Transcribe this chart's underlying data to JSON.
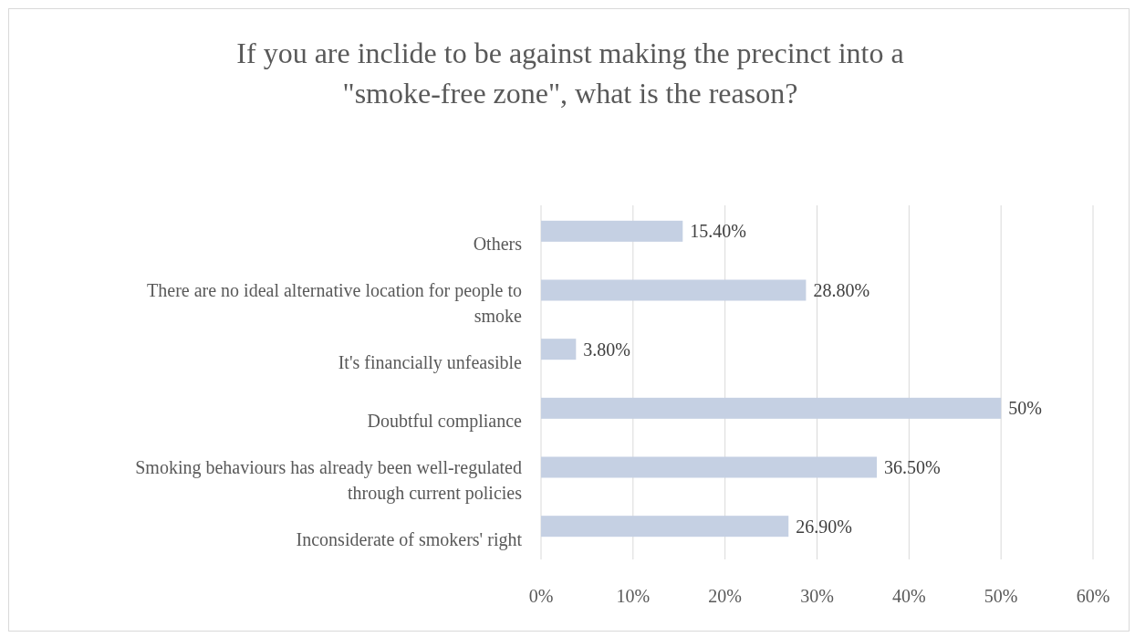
{
  "chart_data": {
    "type": "bar",
    "orientation": "horizontal",
    "title": "If you are inclide to be against making the precinct into a \"smoke-free zone\", what is the reason?",
    "categories": [
      "Others",
      "There are no ideal alternative location for  people to smoke",
      "It's financially unfeasible",
      "Doubtful compliance",
      "Smoking behaviours has already been well-regulated through current policies",
      "Inconsiderate of smokers' right"
    ],
    "values": [
      15.4,
      28.8,
      3.8,
      50,
      36.5,
      26.9
    ],
    "value_labels": [
      "15.40%",
      "28.80%",
      "3.80%",
      "50%",
      "36.50%",
      "26.90%"
    ],
    "color": "#c5d0e3",
    "xlim": [
      0,
      60
    ],
    "xticks": [
      {
        "value": 0,
        "label": "0%"
      },
      {
        "value": 10,
        "label": "10%"
      },
      {
        "value": 20,
        "label": "20%"
      },
      {
        "value": 30,
        "label": "30%"
      },
      {
        "value": 40,
        "label": "40%"
      },
      {
        "value": 50,
        "label": "50%"
      },
      {
        "value": 60,
        "label": "60%"
      }
    ],
    "grid": "x"
  }
}
